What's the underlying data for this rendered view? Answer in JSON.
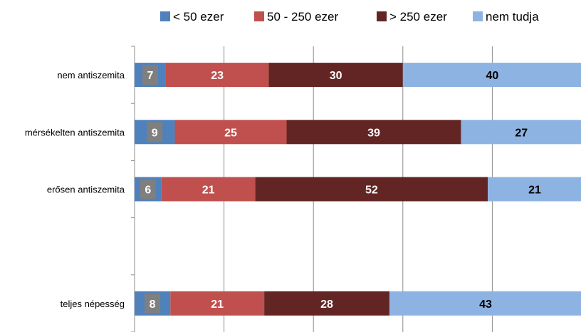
{
  "chart_data": {
    "type": "bar",
    "orientation": "horizontal",
    "stacked": true,
    "categories": [
      "nem antiszemita",
      "mérsékelten antiszemita",
      "erősen antiszemita",
      "",
      "teljes népesség"
    ],
    "series": [
      {
        "name": "< 50 ezer",
        "color": "#4f81bd",
        "values": [
          7,
          9,
          6,
          null,
          8
        ]
      },
      {
        "name": "50 - 250 ezer",
        "color": "#c0504d",
        "values": [
          23,
          25,
          21,
          null,
          21
        ]
      },
      {
        "name": "> 250 ezer",
        "color": "#632523",
        "values": [
          30,
          39,
          52,
          null,
          28
        ]
      },
      {
        "name": "nem tudja",
        "color": "#8db3e2",
        "values": [
          40,
          27,
          21,
          null,
          43
        ]
      }
    ],
    "xlim": [
      0,
      100
    ],
    "grid": true,
    "legend": "top-right",
    "label_box_color": "#7f7f7f"
  }
}
